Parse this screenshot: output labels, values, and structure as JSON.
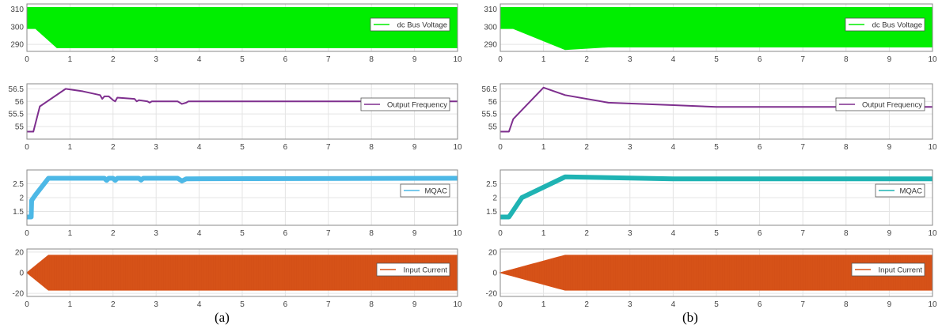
{
  "captions": [
    "(a)",
    "(b)"
  ],
  "colors": {
    "voltage": "#00ee00",
    "frequency": "#7e2f8e",
    "mqac": "#4db8e6",
    "mqac_b": "#1fb3b3",
    "current": "#d95319",
    "grid": "#e4e4e4",
    "axis": "#8a8a8a"
  },
  "chart_data": [
    {
      "type": "line",
      "panel": "a",
      "series": [
        {
          "name": "dc Bus Voltage",
          "x": [
            0,
            0.2,
            0.7,
            10
          ],
          "y": [
            299,
            299,
            288,
            288
          ],
          "upper": 311
        }
      ],
      "xlim": [
        0,
        10
      ],
      "ylim": [
        286,
        313
      ],
      "x_ticks": [
        0,
        1,
        2,
        3,
        4,
        5,
        6,
        7,
        8,
        9,
        10
      ],
      "y_ticks": [
        290,
        300,
        310
      ],
      "legend": "top-right",
      "grid": true
    },
    {
      "type": "line",
      "panel": "a",
      "series": [
        {
          "name": "Output Frequency",
          "x": [
            0,
            0.15,
            0.3,
            0.9,
            1.3,
            1.7,
            1.75,
            1.8,
            1.9,
            2.0,
            2.05,
            2.1,
            2.5,
            2.55,
            2.6,
            2.8,
            2.85,
            2.9,
            3.5,
            3.6,
            3.7,
            3.75,
            10
          ],
          "y": [
            54.8,
            54.8,
            55.8,
            56.5,
            56.4,
            56.25,
            56.1,
            56.2,
            56.2,
            56.05,
            56.0,
            56.15,
            56.1,
            56.0,
            56.05,
            56.0,
            55.95,
            56.0,
            56.0,
            55.9,
            55.95,
            56.0,
            56.0
          ]
        }
      ],
      "xlim": [
        0,
        10
      ],
      "ylim": [
        54.5,
        56.7
      ],
      "x_ticks": [
        0,
        1,
        2,
        3,
        4,
        5,
        6,
        7,
        8,
        9,
        10
      ],
      "y_ticks": [
        55,
        55.5,
        56,
        56.5
      ],
      "legend": "top-right",
      "grid": true
    },
    {
      "type": "line",
      "panel": "a",
      "series": [
        {
          "name": "MQAC",
          "x": [
            0,
            0.1,
            0.11,
            0.2,
            0.5,
            1.8,
            1.85,
            1.9,
            2.0,
            2.05,
            2.1,
            2.6,
            2.65,
            2.7,
            3.5,
            3.6,
            3.7,
            10
          ],
          "y": [
            1.3,
            1.3,
            1.9,
            2.1,
            2.7,
            2.7,
            2.62,
            2.7,
            2.7,
            2.62,
            2.7,
            2.7,
            2.63,
            2.7,
            2.7,
            2.6,
            2.68,
            2.7
          ]
        }
      ],
      "xlim": [
        0,
        10
      ],
      "ylim": [
        1.0,
        3.0
      ],
      "x_ticks": [
        0,
        1,
        2,
        3,
        4,
        5,
        6,
        7,
        8,
        9,
        10
      ],
      "y_ticks": [
        1.5,
        2,
        2.5
      ],
      "legend": "top-right",
      "grid": true
    },
    {
      "type": "area",
      "panel": "a",
      "series": [
        {
          "name": "Input Current",
          "x": [
            0,
            0.5,
            10
          ],
          "amplitude": [
            0,
            17,
            17
          ]
        }
      ],
      "xlim": [
        0,
        10
      ],
      "ylim": [
        -23,
        23
      ],
      "x_ticks": [
        0,
        1,
        2,
        3,
        4,
        5,
        6,
        7,
        8,
        9,
        10
      ],
      "y_ticks": [
        -20,
        0,
        20
      ],
      "legend": "top-right",
      "grid": true
    },
    {
      "type": "line",
      "panel": "b",
      "series": [
        {
          "name": "dc Bus Voltage",
          "x": [
            0,
            0.3,
            1.5,
            2.5,
            10
          ],
          "y": [
            299,
            299,
            287,
            288.5,
            288.5
          ],
          "upper": 311
        }
      ],
      "xlim": [
        0,
        10
      ],
      "ylim": [
        286,
        313
      ],
      "x_ticks": [
        0,
        1,
        2,
        3,
        4,
        5,
        6,
        7,
        8,
        9,
        10
      ],
      "y_ticks": [
        290,
        300,
        310
      ],
      "legend": "top-right",
      "grid": true
    },
    {
      "type": "line",
      "panel": "b",
      "series": [
        {
          "name": "Output Frequency",
          "x": [
            0,
            0.2,
            0.3,
            1.0,
            1.5,
            2.5,
            4.0,
            5.0,
            10
          ],
          "y": [
            54.8,
            54.8,
            55.3,
            56.55,
            56.25,
            55.95,
            55.85,
            55.78,
            55.78
          ]
        }
      ],
      "xlim": [
        0,
        10
      ],
      "ylim": [
        54.5,
        56.7
      ],
      "x_ticks": [
        0,
        1,
        2,
        3,
        4,
        5,
        6,
        7,
        8,
        9,
        10
      ],
      "y_ticks": [
        55,
        55.5,
        56,
        56.5
      ],
      "legend": "top-right",
      "grid": true
    },
    {
      "type": "line",
      "panel": "b",
      "series": [
        {
          "name": "MQAC",
          "x": [
            0,
            0.2,
            0.5,
            1.5,
            4.0,
            10
          ],
          "y": [
            1.3,
            1.3,
            2.0,
            2.75,
            2.68,
            2.68
          ]
        }
      ],
      "xlim": [
        0,
        10
      ],
      "ylim": [
        1.0,
        3.0
      ],
      "x_ticks": [
        0,
        1,
        2,
        3,
        4,
        5,
        6,
        7,
        8,
        9,
        10
      ],
      "y_ticks": [
        1.5,
        2,
        2.5
      ],
      "legend": "top-right",
      "grid": true
    },
    {
      "type": "area",
      "panel": "b",
      "series": [
        {
          "name": "Input Current",
          "x": [
            0,
            1.5,
            10
          ],
          "amplitude": [
            0,
            17,
            17
          ]
        }
      ],
      "xlim": [
        0,
        10
      ],
      "ylim": [
        -23,
        23
      ],
      "x_ticks": [
        0,
        1,
        2,
        3,
        4,
        5,
        6,
        7,
        8,
        9,
        10
      ],
      "y_ticks": [
        -20,
        0,
        20
      ],
      "legend": "top-right",
      "grid": true
    }
  ]
}
